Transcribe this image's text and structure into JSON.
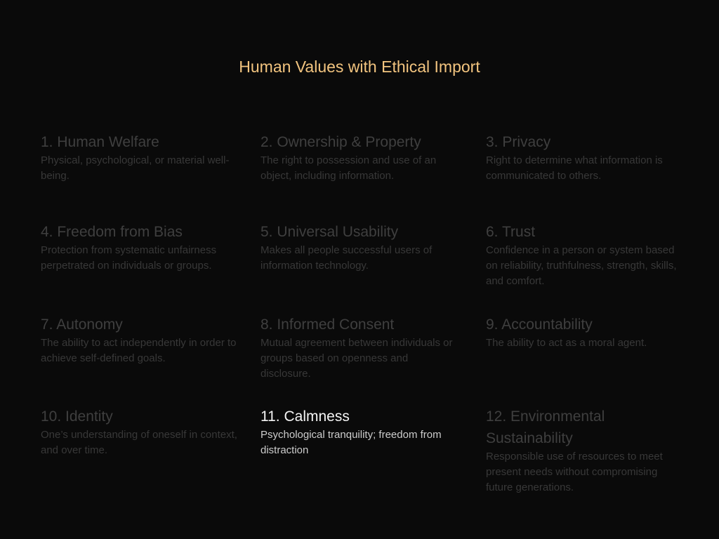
{
  "title": "Human Values with Ethical Import",
  "values": [
    {
      "title": "1. Human Welfare",
      "description": "Physical, psychological, or material well-being."
    },
    {
      "title": "2. Ownership & Property",
      "description": "The right to possession and use of an object, including information."
    },
    {
      "title": "3. Privacy",
      "description": "Right to determine what information is communicated to others."
    },
    {
      "title": "4. Freedom from Bias",
      "description": "Protection from systematic unfairness perpetrated on individuals or groups."
    },
    {
      "title": "5. Universal Usability",
      "description": "Makes all people successful users of information technology."
    },
    {
      "title": "6. Trust",
      "description": "Confidence in a person or system based on reliability, truthfulness, strength, skills, and comfort."
    },
    {
      "title": "7. Autonomy",
      "description": "The ability to act independently in order to achieve self-defined goals."
    },
    {
      "title": "8. Informed Consent",
      "description": "Mutual agreement between individuals or groups based on openness and disclosure."
    },
    {
      "title": "9. Accountability",
      "description": "The ability to act as a moral agent."
    },
    {
      "title": "10. Identity",
      "description": "One’s understanding of oneself in context, and over time."
    },
    {
      "title": "11. Calmness",
      "description": "Psychological tranquility; freedom from distraction"
    },
    {
      "title": "12. Environmental Sustainability",
      "description": "Responsible use of resources to meet present needs without compromising future generations."
    }
  ],
  "colors": {
    "background": "#0a0a0a",
    "title": "#f2c47f",
    "dimmed_heading": "#3f3f3f",
    "dimmed_text": "#383838",
    "active_heading": "#f4f4f4",
    "active_text": "#cccccc"
  },
  "active_index": 10
}
